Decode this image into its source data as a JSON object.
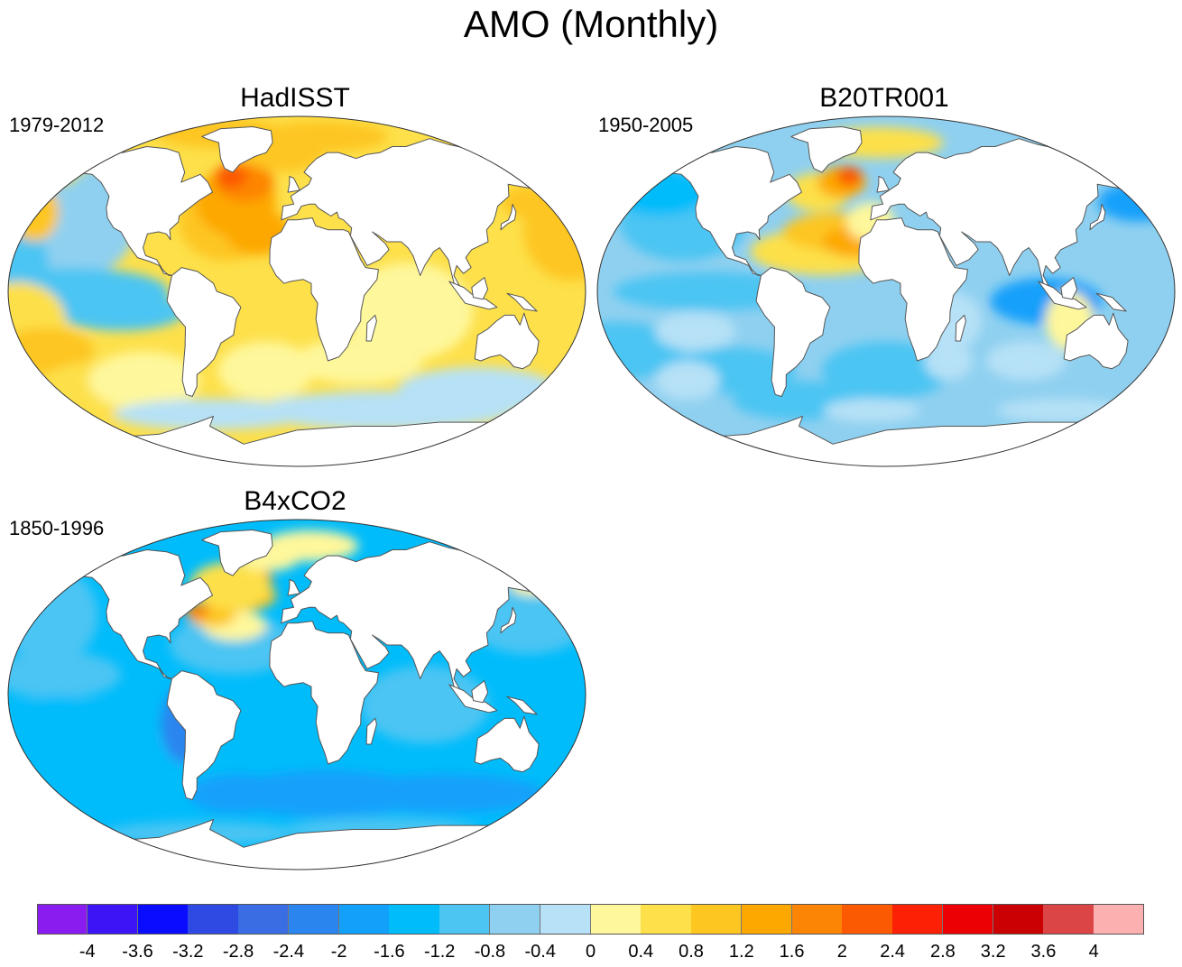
{
  "title": "AMO (Monthly)",
  "panels": [
    {
      "id": "hadisst",
      "title": "HadISST",
      "period": "1979-2012",
      "scheme": "warm"
    },
    {
      "id": "b20tr001",
      "title": "B20TR001",
      "period": "1950-2005",
      "scheme": "mixed"
    },
    {
      "id": "b4xco2",
      "title": "B4xCO2",
      "period": "1850-1996",
      "scheme": "cool"
    }
  ],
  "colorbar": {
    "labels": [
      "-4",
      "-3.6",
      "-3.2",
      "-2.8",
      "-2.4",
      "-2",
      "-1.6",
      "-1.2",
      "-0.8",
      "-0.4",
      "0",
      "0.4",
      "0.8",
      "1.2",
      "1.6",
      "2",
      "2.4",
      "2.8",
      "3.2",
      "3.6",
      "4"
    ],
    "colors": [
      "#8b1cf0",
      "#3c14f5",
      "#0a0cff",
      "#2f4ae3",
      "#3a6de4",
      "#2a85ef",
      "#12a0fb",
      "#00bcfb",
      "#4cc5f3",
      "#8fd0f0",
      "#b6e1f6",
      "#fef79b",
      "#fde04a",
      "#fdc621",
      "#fda801",
      "#fd8506",
      "#fc5903",
      "#fc2005",
      "#ec0003",
      "#cb0003",
      "#dc4545",
      "#fdb0b0"
    ]
  },
  "map_colors": {
    "land": "#ffffff",
    "coastline": "#555555",
    "outline": "#333333"
  }
}
